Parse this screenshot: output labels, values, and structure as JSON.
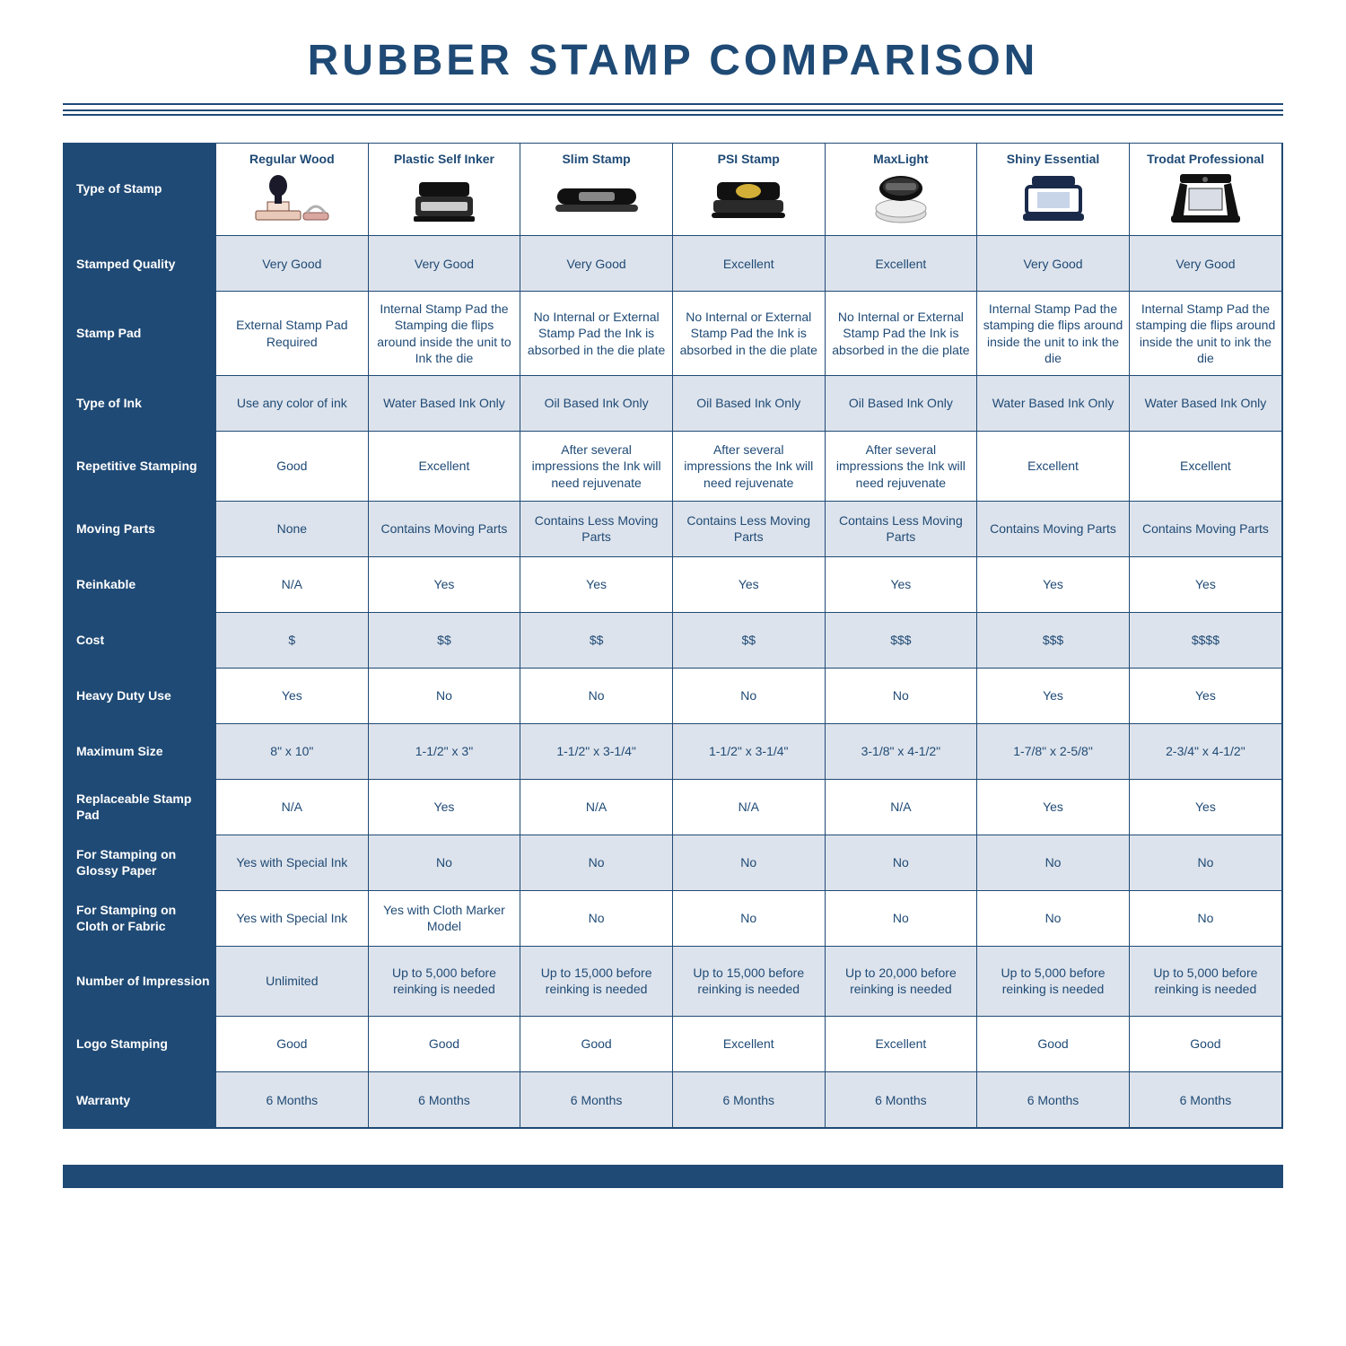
{
  "colors": {
    "brand": "#1f4a75",
    "alt_row": "#dde3ec",
    "white": "#ffffff"
  },
  "title": "RUBBER STAMP COMPARISON",
  "columns": [
    "Regular Wood",
    "Plastic Self Inker",
    "Slim Stamp",
    "PSI Stamp",
    "MaxLight",
    "Shiny Essential",
    "Trodat Professional"
  ],
  "row_header_for_images": "Type of Stamp",
  "rows": [
    {
      "label": "Stamped Quality",
      "alt": true,
      "cells": [
        "Very Good",
        "Very Good",
        "Very Good",
        "Excellent",
        "Excellent",
        "Very Good",
        "Very Good"
      ]
    },
    {
      "label": "Stamp Pad",
      "alt": false,
      "tall": true,
      "cells": [
        "External Stamp Pad Required",
        "Internal Stamp Pad the Stamping die flips around inside the unit to Ink the die",
        "No Internal or External Stamp Pad the Ink is absorbed in the die plate",
        "No Internal or External Stamp Pad the Ink is absorbed in the die plate",
        "No Internal or External Stamp Pad the Ink is absorbed in the die plate",
        "Internal Stamp Pad the stamping die flips around inside the unit to ink the die",
        "Internal Stamp Pad the stamping die flips around inside the unit to ink the die"
      ]
    },
    {
      "label": "Type of Ink",
      "alt": true,
      "cells": [
        "Use any color of ink",
        "Water Based Ink Only",
        "Oil Based Ink Only",
        "Oil Based Ink Only",
        "Oil Based Ink Only",
        "Water Based Ink Only",
        "Water Based Ink Only"
      ]
    },
    {
      "label": "Repetitive Stamping",
      "alt": false,
      "tall": true,
      "cells": [
        "Good",
        "Excellent",
        "After several impressions the Ink will need rejuvenate",
        "After several impressions the Ink will need rejuvenate",
        "After several impressions the Ink will need rejuvenate",
        "Excellent",
        "Excellent"
      ]
    },
    {
      "label": "Moving Parts",
      "alt": true,
      "cells": [
        "None",
        "Contains Moving Parts",
        "Contains Less Moving Parts",
        "Contains Less Moving Parts",
        "Contains Less Moving Parts",
        "Contains Moving Parts",
        "Contains Moving Parts"
      ]
    },
    {
      "label": "Reinkable",
      "alt": false,
      "cells": [
        "N/A",
        "Yes",
        "Yes",
        "Yes",
        "Yes",
        "Yes",
        "Yes"
      ]
    },
    {
      "label": "Cost",
      "alt": true,
      "cells": [
        "$",
        "$$",
        "$$",
        "$$",
        "$$$",
        "$$$",
        "$$$$"
      ]
    },
    {
      "label": "Heavy Duty Use",
      "alt": false,
      "cells": [
        "Yes",
        "No",
        "No",
        "No",
        "No",
        "Yes",
        "Yes"
      ]
    },
    {
      "label": "Maximum Size",
      "alt": true,
      "cells": [
        "8\" x 10\"",
        "1-1/2\" x 3\"",
        "1-1/2\" x 3-1/4\"",
        "1-1/2\" x 3-1/4\"",
        "3-1/8\" x 4-1/2\"",
        "1-7/8\" x 2-5/8\"",
        "2-3/4\" x 4-1/2\""
      ]
    },
    {
      "label": "Replaceable Stamp Pad",
      "alt": false,
      "cells": [
        "N/A",
        "Yes",
        "N/A",
        "N/A",
        "N/A",
        "Yes",
        "Yes"
      ]
    },
    {
      "label": "For Stamping on Glossy Paper",
      "alt": true,
      "cells": [
        "Yes with Special Ink",
        "No",
        "No",
        "No",
        "No",
        "No",
        "No"
      ]
    },
    {
      "label": "For Stamping on Cloth or Fabric",
      "alt": false,
      "cells": [
        "Yes with Special Ink",
        "Yes with Cloth Marker Model",
        "No",
        "No",
        "No",
        "No",
        "No"
      ]
    },
    {
      "label": "Number of Impression",
      "alt": true,
      "tall": true,
      "cells": [
        "Unlimited",
        "Up to 5,000 before reinking is needed",
        "Up to 15,000 before reinking is needed",
        "Up to 15,000 before reinking is needed",
        "Up to 20,000 before reinking is needed",
        "Up to 5,000 before reinking is needed",
        "Up to 5,000 before reinking is needed"
      ]
    },
    {
      "label": "Logo Stamping",
      "alt": false,
      "cells": [
        "Good",
        "Good",
        "Good",
        "Excellent",
        "Excellent",
        "Good",
        "Good"
      ]
    },
    {
      "label": "Warranty",
      "alt": true,
      "cells": [
        "6 Months",
        "6 Months",
        "6 Months",
        "6 Months",
        "6 Months",
        "6 Months",
        "6 Months"
      ]
    }
  ],
  "stamp_icons": [
    "wood-handle-stamp-icon",
    "self-inker-stamp-icon",
    "slim-stamp-icon",
    "psi-stamp-icon",
    "maxlight-round-stamp-icon",
    "shiny-essential-stamp-icon",
    "trodat-professional-stamp-icon"
  ]
}
